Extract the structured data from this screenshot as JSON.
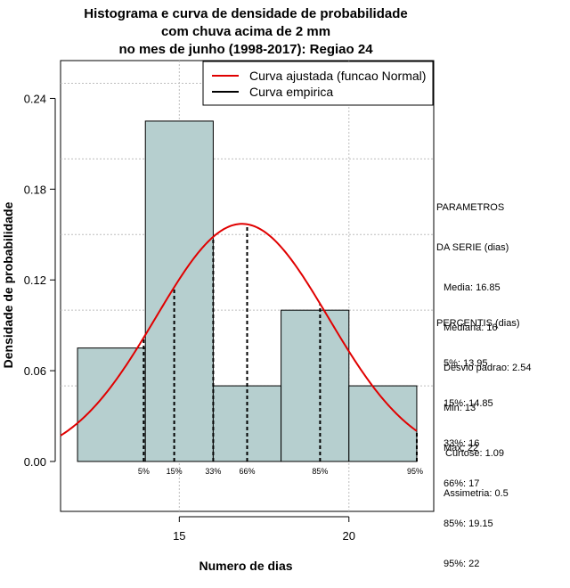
{
  "chart_data": {
    "type": "bar",
    "title_lines": [
      "Histograma e curva de densidade de probabilidade",
      "com chuva acima de 2 mm",
      "no mes de junho (1998-2017): Regiao 24"
    ],
    "xlabel": "Numero de dias",
    "ylabel": "Densidade de probabilidade",
    "xlim": [
      11.5,
      22.5
    ],
    "ylim": [
      -0.033,
      0.265
    ],
    "x_ticks": [
      "15",
      "20"
    ],
    "x_tick_values": [
      15,
      20
    ],
    "y_ticks": [
      "0.00",
      "0.06",
      "0.12",
      "0.18",
      "0.24"
    ],
    "y_tick_values": [
      0,
      0.06,
      0.12,
      0.18,
      0.24
    ],
    "grid": true,
    "grid_x": [
      15,
      20
    ],
    "grid_y": [
      0.05,
      0.1,
      0.15,
      0.2,
      0.25
    ],
    "bar_color": "#b6cfcf",
    "bins": [
      {
        "start": 12,
        "end": 14,
        "density": 0.075
      },
      {
        "start": 14,
        "end": 16,
        "density": 0.225
      },
      {
        "start": 16,
        "end": 18,
        "density": 0.05
      },
      {
        "start": 18,
        "end": 20,
        "density": 0.1
      },
      {
        "start": 20,
        "end": 22,
        "density": 0.05
      }
    ],
    "series": [
      {
        "name": "Curva ajustada (funcao Normal)",
        "color": "#e00000",
        "kind": "normal",
        "mean": 16.85,
        "sd": 2.54
      },
      {
        "name": "Curva empirica",
        "color": "#000000",
        "kind": "empirical"
      }
    ],
    "legend_position": "top-right",
    "percentile_lines": [
      {
        "label": "5%",
        "x": 13.95
      },
      {
        "label": "15%",
        "x": 14.85
      },
      {
        "label": "33%",
        "x": 16
      },
      {
        "label": "66%",
        "x": 17
      },
      {
        "label": "85%",
        "x": 19.15
      },
      {
        "label": "95%",
        "x": 22
      }
    ]
  },
  "stats": {
    "params_heading_1": "PARAMETROS",
    "params_heading_2": "DA SERIE (dias)",
    "params": [
      "Media: 16.85",
      "Mediana: 16",
      "Desvio padrao: 2.54",
      "Min: 13",
      "Max: 22"
    ],
    "percentis_heading": "PERCENTIS (dias)",
    "percentis": [
      "5%: 13.95",
      "15%: 14.85",
      "33%: 16",
      "66%: 17",
      "85%: 19.15",
      "95%: 22"
    ],
    "curtose": "Curtose: 1.09",
    "assimetria": "Assimetria: 0.5"
  }
}
